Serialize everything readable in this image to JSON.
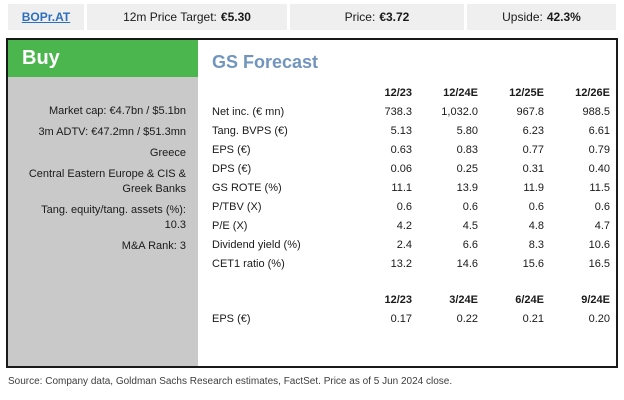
{
  "top_bar": {
    "ticker": "BOPr.AT",
    "price_target": {
      "label": "12m Price Target:",
      "value": "€5.30"
    },
    "price": {
      "label": "Price:",
      "value": "€3.72"
    },
    "upside": {
      "label": "Upside:",
      "value": "42.3%"
    }
  },
  "sidebar": {
    "rating": "Buy",
    "items": [
      "Market cap: €4.7bn / $5.1bn",
      "3m ADTV: €47.2mn / $51.3mn",
      "Greece",
      "Central Eastern Europe & CIS & Greek Banks",
      "Tang. equity/tang. assets (%): 10.3",
      "M&A Rank: 3"
    ]
  },
  "forecast": {
    "title": "GS Forecast",
    "annual": {
      "columns": [
        "12/23",
        "12/24E",
        "12/25E",
        "12/26E"
      ],
      "rows": [
        {
          "label": "Net inc. (€ mn)",
          "values": [
            "738.3",
            "1,032.0",
            "967.8",
            "988.5"
          ]
        },
        {
          "label": "Tang. BVPS (€)",
          "values": [
            "5.13",
            "5.80",
            "6.23",
            "6.61"
          ]
        },
        {
          "label": "EPS (€)",
          "values": [
            "0.63",
            "0.83",
            "0.77",
            "0.79"
          ]
        },
        {
          "label": "DPS (€)",
          "values": [
            "0.06",
            "0.25",
            "0.31",
            "0.40"
          ]
        },
        {
          "label": "GS ROTE (%)",
          "values": [
            "11.1",
            "13.9",
            "11.9",
            "11.5"
          ]
        },
        {
          "label": "P/TBV (X)",
          "values": [
            "0.6",
            "0.6",
            "0.6",
            "0.6"
          ]
        },
        {
          "label": "P/E (X)",
          "values": [
            "4.2",
            "4.5",
            "4.8",
            "4.7"
          ]
        },
        {
          "label": "Dividend yield (%)",
          "values": [
            "2.4",
            "6.6",
            "8.3",
            "10.6"
          ]
        },
        {
          "label": "CET1 ratio (%)",
          "values": [
            "13.2",
            "14.6",
            "15.6",
            "16.5"
          ]
        }
      ]
    },
    "quarterly": {
      "columns": [
        "12/23",
        "3/24E",
        "6/24E",
        "9/24E"
      ],
      "rows": [
        {
          "label": "EPS (€)",
          "values": [
            "0.17",
            "0.22",
            "0.21",
            "0.20"
          ]
        }
      ]
    }
  },
  "footer": {
    "source": "Source: Company data, Goldman Sachs Research estimates, FactSet. Price as of 5 Jun 2024 close."
  },
  "colors": {
    "rating_green": "#4bb64d",
    "heading_blue": "#7295be",
    "link_blue": "#2d6fbf",
    "sidebar_gray": "#c9c9c9",
    "topbar_gray": "#efefef",
    "border_black": "#1a1a1a"
  }
}
